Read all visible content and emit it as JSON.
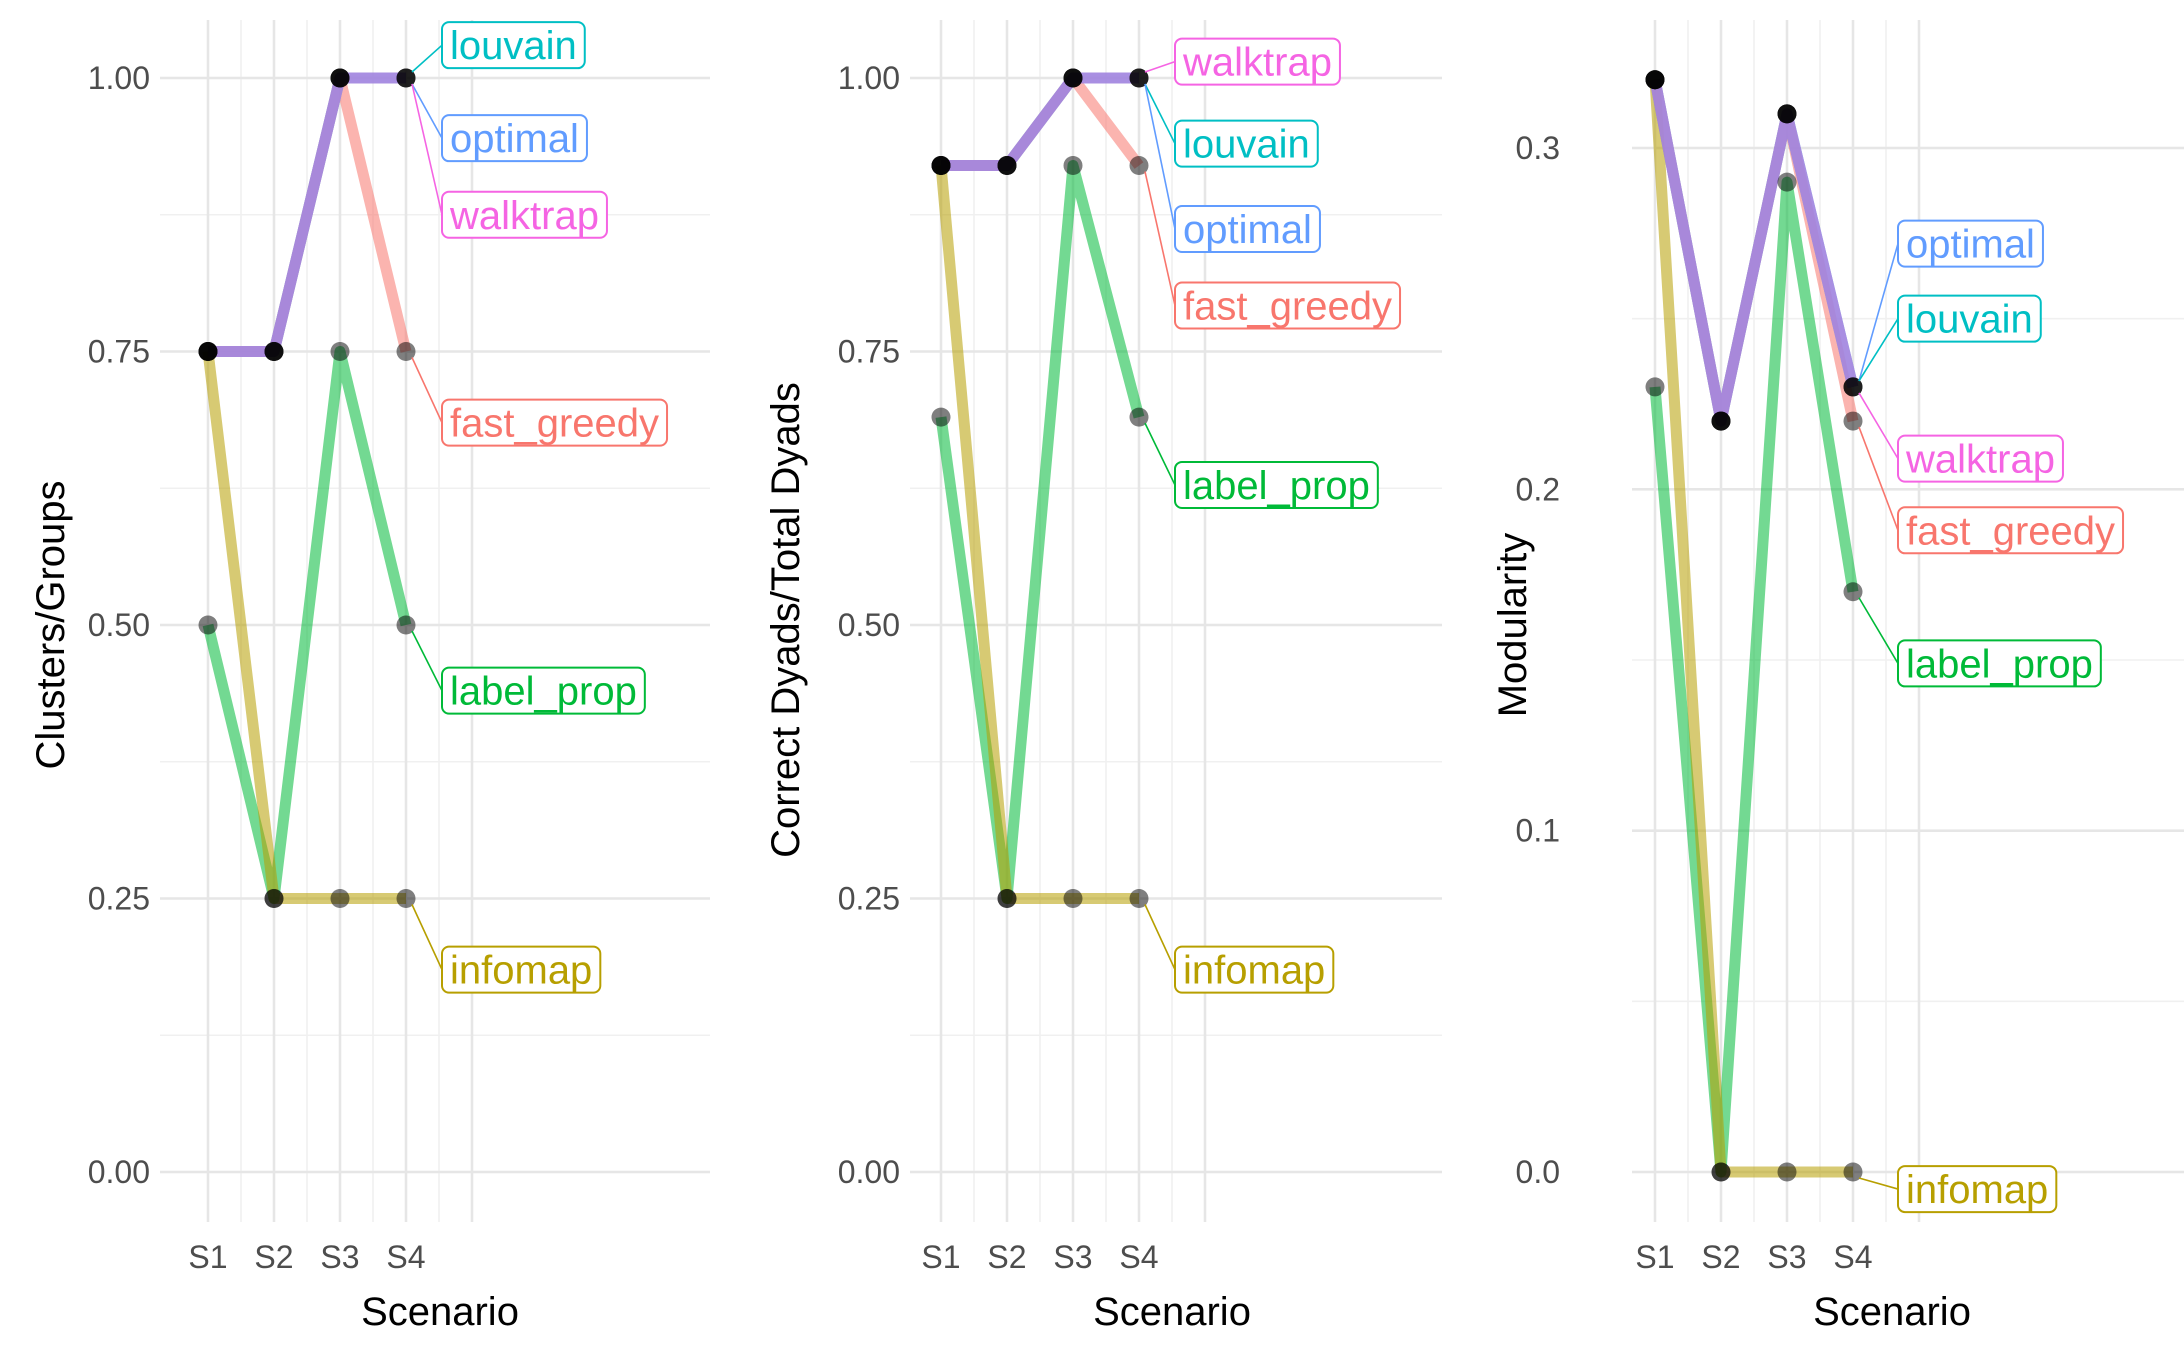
{
  "chart_data": [
    {
      "type": "line",
      "categories": [
        "S1",
        "S2",
        "S3",
        "S4"
      ],
      "xlabel": "Scenario",
      "ylabel": "Clusters/Groups",
      "ylim": [
        0,
        1
      ],
      "yticks": [
        "0.00",
        "0.25",
        "0.50",
        "0.75",
        "1.00"
      ],
      "series": [
        {
          "name": "fast_greedy",
          "color": "#F8766D",
          "values": [
            0.75,
            0.75,
            1.0,
            0.75
          ]
        },
        {
          "name": "infomap",
          "color": "#B79F00",
          "values": [
            0.75,
            0.25,
            0.25,
            0.25
          ]
        },
        {
          "name": "label_prop",
          "color": "#00BA38",
          "values": [
            0.5,
            0.25,
            0.75,
            0.5
          ]
        },
        {
          "name": "louvain",
          "color": "#00BFC4",
          "values": [
            0.75,
            0.75,
            1.0,
            1.0
          ]
        },
        {
          "name": "optimal",
          "color": "#619CFF",
          "values": [
            0.75,
            0.75,
            1.0,
            1.0
          ]
        },
        {
          "name": "walktrap",
          "color": "#F564E3",
          "values": [
            0.75,
            0.75,
            1.0,
            1.0
          ]
        }
      ],
      "labels": [
        {
          "series": "louvain",
          "text": "louvain",
          "value": 1.03
        },
        {
          "series": "optimal",
          "text": "optimal",
          "value": 0.945
        },
        {
          "series": "walktrap",
          "text": "walktrap",
          "value": 0.875
        },
        {
          "series": "fast_greedy",
          "text": "fast_greedy",
          "value": 0.685
        },
        {
          "series": "label_prop",
          "text": "label_prop",
          "value": 0.44
        },
        {
          "series": "infomap",
          "text": "infomap",
          "value": 0.185
        }
      ]
    },
    {
      "type": "line",
      "categories": [
        "S1",
        "S2",
        "S3",
        "S4"
      ],
      "xlabel": "Scenario",
      "ylabel": "Correct Dyads/Total Dyads",
      "ylim": [
        0,
        1
      ],
      "yticks": [
        "0.00",
        "0.25",
        "0.50",
        "0.75",
        "1.00"
      ],
      "series": [
        {
          "name": "fast_greedy",
          "color": "#F8766D",
          "values": [
            0.92,
            0.92,
            1.0,
            0.92
          ]
        },
        {
          "name": "infomap",
          "color": "#B79F00",
          "values": [
            0.92,
            0.25,
            0.25,
            0.25
          ]
        },
        {
          "name": "label_prop",
          "color": "#00BA38",
          "values": [
            0.69,
            0.25,
            0.92,
            0.69
          ]
        },
        {
          "name": "louvain",
          "color": "#00BFC4",
          "values": [
            0.92,
            0.92,
            1.0,
            1.0
          ]
        },
        {
          "name": "optimal",
          "color": "#619CFF",
          "values": [
            0.92,
            0.92,
            1.0,
            1.0
          ]
        },
        {
          "name": "walktrap",
          "color": "#F564E3",
          "values": [
            0.92,
            0.92,
            1.0,
            1.0
          ]
        }
      ],
      "labels": [
        {
          "series": "walktrap",
          "text": "walktrap",
          "value": 1.015
        },
        {
          "series": "louvain",
          "text": "louvain",
          "value": 0.94
        },
        {
          "series": "optimal",
          "text": "optimal",
          "value": 0.862
        },
        {
          "series": "fast_greedy",
          "text": "fast_greedy",
          "value": 0.792
        },
        {
          "series": "label_prop",
          "text": "label_prop",
          "value": 0.628
        },
        {
          "series": "infomap",
          "text": "infomap",
          "value": 0.185
        }
      ]
    },
    {
      "type": "line",
      "categories": [
        "S1",
        "S2",
        "S3",
        "S4"
      ],
      "xlabel": "Scenario",
      "ylabel": "Modularity",
      "ylim": [
        -0.018,
        0.32
      ],
      "yticks": [
        "0.0",
        "0.1",
        "0.2",
        "0.3"
      ],
      "series": [
        {
          "name": "fast_greedy",
          "color": "#F8766D",
          "values": [
            0.32,
            0.22,
            0.31,
            0.22
          ]
        },
        {
          "name": "infomap",
          "color": "#B79F00",
          "values": [
            0.32,
            0.0,
            0.0,
            0.0
          ]
        },
        {
          "name": "label_prop",
          "color": "#00BA38",
          "values": [
            0.23,
            0.0,
            0.29,
            0.17
          ]
        },
        {
          "name": "louvain",
          "color": "#00BFC4",
          "values": [
            0.32,
            0.22,
            0.31,
            0.23
          ]
        },
        {
          "name": "optimal",
          "color": "#619CFF",
          "values": [
            0.32,
            0.22,
            0.31,
            0.23
          ]
        },
        {
          "name": "walktrap",
          "color": "#F564E3",
          "values": [
            0.32,
            0.22,
            0.31,
            0.23
          ]
        }
      ],
      "labels": [
        {
          "series": "optimal",
          "text": "optimal",
          "value": 0.272
        },
        {
          "series": "louvain",
          "text": "louvain",
          "value": 0.25
        },
        {
          "series": "walktrap",
          "text": "walktrap",
          "value": 0.209
        },
        {
          "series": "fast_greedy",
          "text": "fast_greedy",
          "value": 0.188
        },
        {
          "series": "label_prop",
          "text": "label_prop",
          "value": 0.149
        },
        {
          "series": "infomap",
          "text": "infomap",
          "value": -0.005
        }
      ]
    }
  ]
}
